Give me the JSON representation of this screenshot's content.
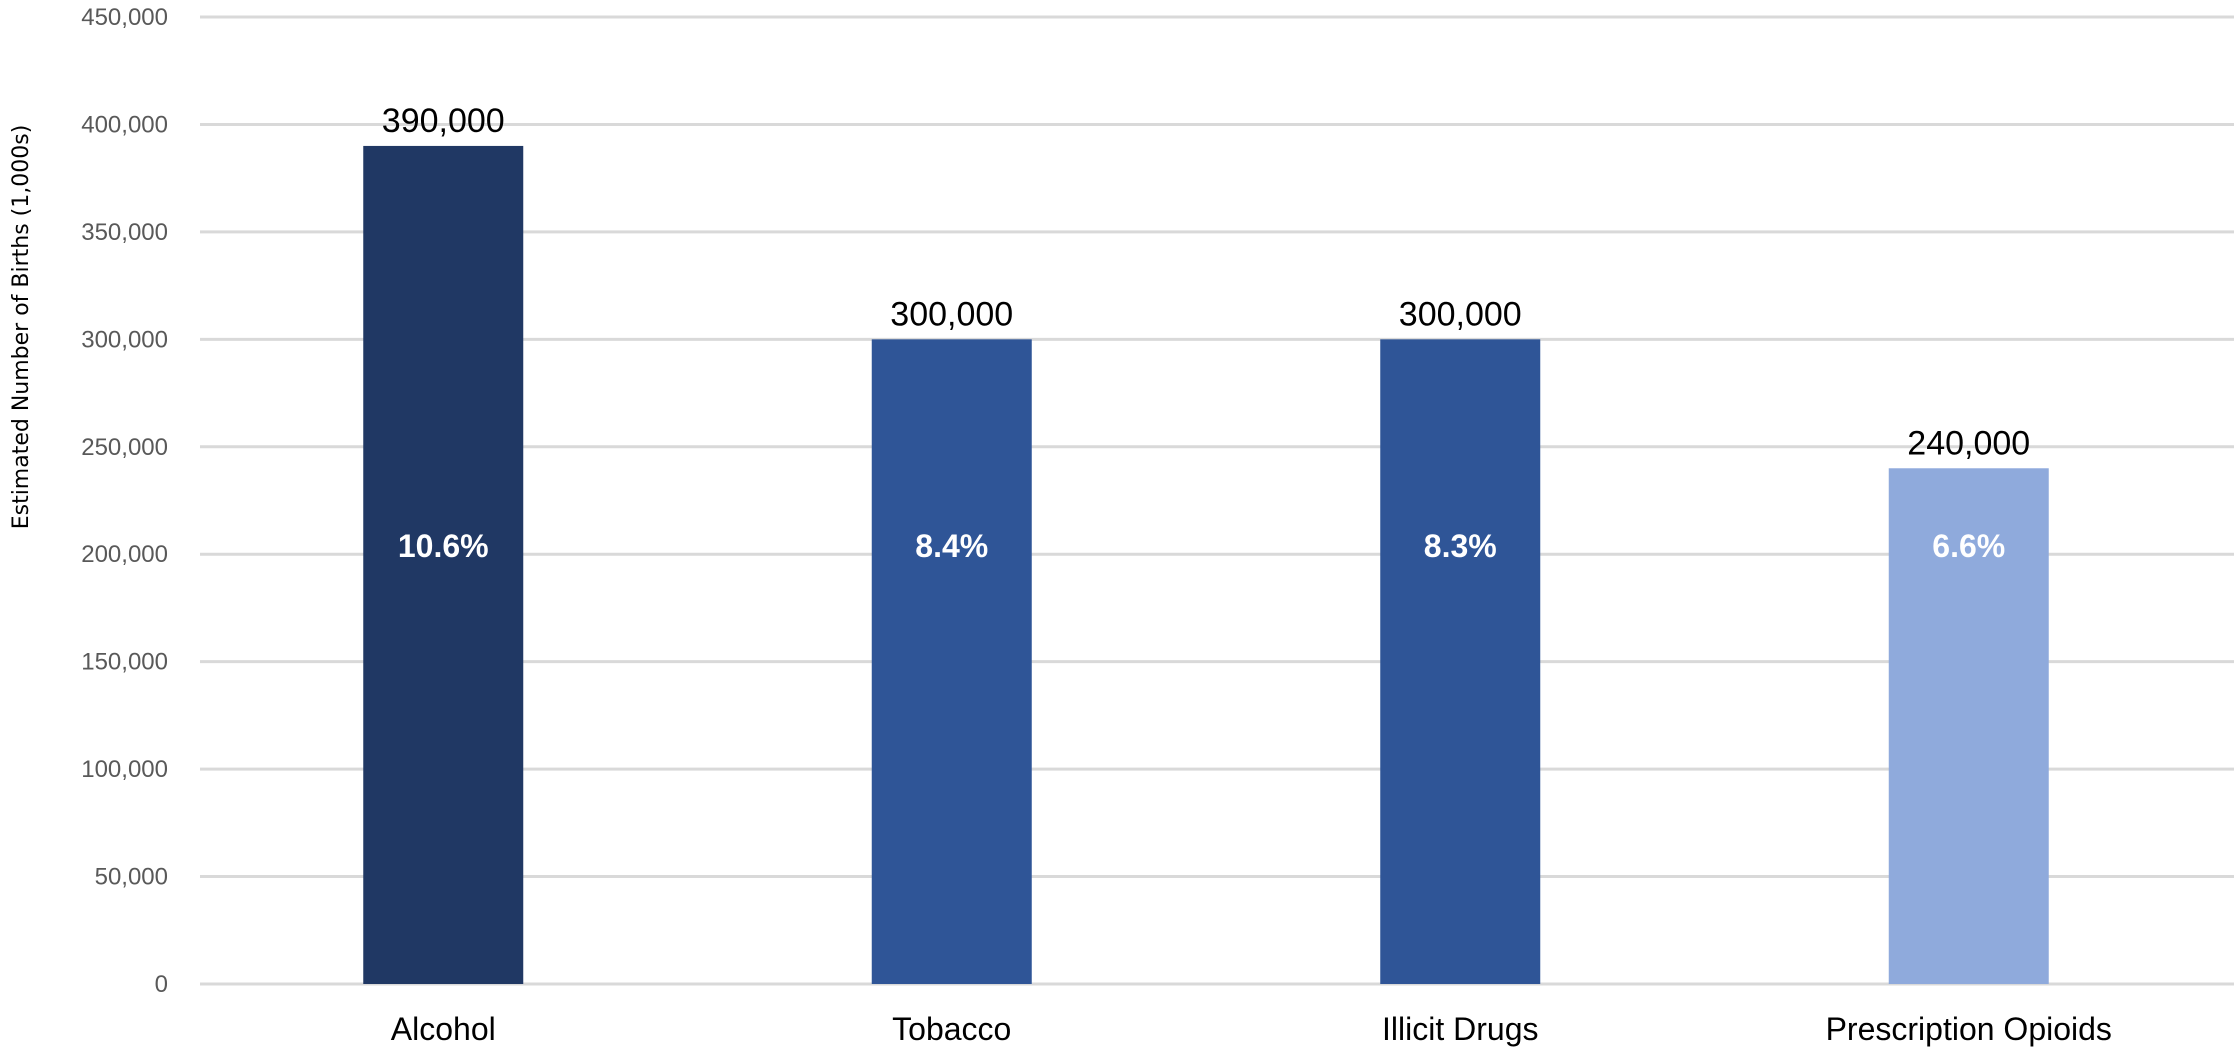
{
  "chart_data": {
    "type": "bar",
    "title": "",
    "xlabel": "",
    "ylabel": "Estimated Number of Births (1,000s)",
    "categories": [
      "Alcohol",
      "Tobacco",
      "Illicit Drugs",
      "Prescription Opioids"
    ],
    "values": [
      390000,
      300000,
      300000,
      240000
    ],
    "value_labels": [
      "390,000",
      "300,000",
      "300,000",
      "240,000"
    ],
    "percent_labels": [
      "10.6%",
      "8.4%",
      "8.3%",
      "6.6%"
    ],
    "bar_colors": [
      "#203864",
      "#2f5597",
      "#2f5597",
      "#8faadc"
    ],
    "ylim": [
      0,
      450000
    ],
    "yticks": [
      0,
      50000,
      100000,
      150000,
      200000,
      250000,
      300000,
      350000,
      400000,
      450000
    ],
    "ytick_labels": [
      "0",
      "50,000",
      "100,000",
      "150,000",
      "200,000",
      "250,000",
      "300,000",
      "350,000",
      "400,000",
      "450,000"
    ],
    "grid": true,
    "legend": "none"
  }
}
